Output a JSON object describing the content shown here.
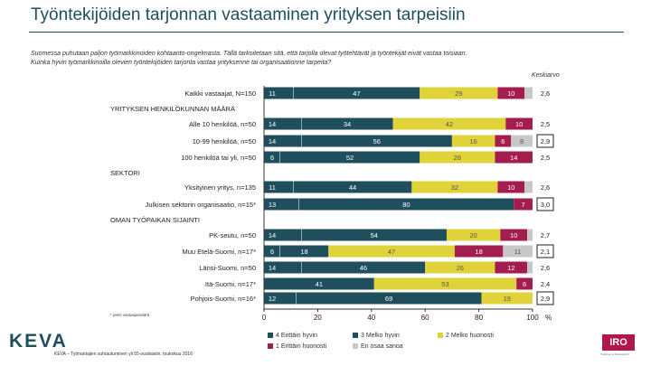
{
  "header": {
    "title": "Työntekijöiden tarjonnan vastaaminen yrityksen tarpeisiin",
    "question_line1": "Suomessa puhutaan paljon työmarkkinoiden kohtaanto-ongelmasta. Tällä tarkoitetaan sitä, että tarjolla olevat työtehtävät ja työntekijät eivät vastaa toisiaan.",
    "question_line2": "Kuinka hyvin työmarkkinoilla olevien työntekijöiden tarjonta vastaa yrityksenne tai organisaationne tarpeita?",
    "average_header": "Keskiarvo"
  },
  "footnote": "* pieni vastaajamäärä",
  "source": "KEVA – Työnantajien suhtautuminen yli 55-vuotiaisiin, toukokuu 2016",
  "logos": {
    "left": "KEVA",
    "right": "IRO",
    "right_sub": "Tutkimus & Konsultointi"
  },
  "colors": {
    "erittain_hyvin": "#1f4e5c",
    "melko_hyvin": "#1f4e5c",
    "melko_huonosti": "#e0d33a",
    "erittain_huonosti": "#a31d4e",
    "en_osaa_sanoa": "#c8c8c8"
  },
  "chart_data": {
    "type": "bar",
    "orientation": "horizontal-stacked-100",
    "title": "Työntekijöiden tarjonnan vastaaminen yrityksen tarpeisiin",
    "xlim": [
      0,
      100
    ],
    "x_ticks": [
      "0",
      "20",
      "40",
      "60",
      "80",
      "100"
    ],
    "x_unit": "%",
    "series": [
      {
        "name": "4 Erittäin hyvin",
        "color": "#1f4e5c"
      },
      {
        "name": "3 Melko hyvin",
        "color": "#1f4e5c"
      },
      {
        "name": "2 Melko huonosti",
        "color": "#e0d33a"
      },
      {
        "name": "1 Erittäin huonosti",
        "color": "#a31d4e"
      },
      {
        "name": "En osaa sanoa",
        "color": "#c8c8c8"
      }
    ],
    "rows": [
      {
        "label": "Kaikki vastaajat, N=150",
        "values": [
          11,
          47,
          29,
          10,
          3
        ],
        "labels": [
          "11",
          "47",
          "29",
          "10",
          ""
        ],
        "average": "2,6",
        "boxed": false
      },
      {
        "section": "YRITYKSEN HENKILÖKUNNAN MÄÄRÄ"
      },
      {
        "label": "Alle 10 henkilöä, n=50",
        "values": [
          14,
          34,
          42,
          10,
          0
        ],
        "labels": [
          "14",
          "34",
          "42",
          "10",
          ""
        ],
        "average": "2,5",
        "boxed": false
      },
      {
        "label": "10-99 henkilöä, n=50",
        "values": [
          14,
          56,
          16,
          6,
          8
        ],
        "labels": [
          "14",
          "56",
          "16",
          "6",
          "8"
        ],
        "average": "2,9",
        "boxed": true
      },
      {
        "label": "100 henkilöä tai yli, n=50",
        "values": [
          6,
          52,
          28,
          14,
          0
        ],
        "labels": [
          "6",
          "52",
          "28",
          "14",
          ""
        ],
        "average": "2,5",
        "boxed": false
      },
      {
        "section": "SEKTORI"
      },
      {
        "label": "Yksityinen yritys, n=135",
        "values": [
          11,
          44,
          32,
          10,
          3
        ],
        "labels": [
          "11",
          "44",
          "32",
          "10",
          ""
        ],
        "average": "2,6",
        "boxed": false
      },
      {
        "label": "Julkisen sektorin organisaatio, n=15*",
        "values": [
          13,
          80,
          0,
          7,
          0
        ],
        "labels": [
          "13",
          "80",
          "",
          "7",
          ""
        ],
        "average": "3,0",
        "boxed": true
      },
      {
        "section": "OMAN TYÖPAIKAN SIJAINTI"
      },
      {
        "label": "PK-seutu, n=50",
        "values": [
          14,
          54,
          20,
          10,
          2
        ],
        "labels": [
          "14",
          "54",
          "20",
          "10",
          ""
        ],
        "average": "2,7",
        "boxed": false
      },
      {
        "label": "Muu Etelä-Suomi, n=17*",
        "values": [
          6,
          18,
          47,
          18,
          11
        ],
        "labels": [
          "6",
          "18",
          "47",
          "18",
          "11"
        ],
        "average": "2,1",
        "boxed": true
      },
      {
        "label": "Länsi-Suomi, n=50",
        "values": [
          14,
          46,
          26,
          12,
          2
        ],
        "labels": [
          "14",
          "46",
          "26",
          "12",
          ""
        ],
        "average": "2,6",
        "boxed": false
      },
      {
        "label": "Itä-Suomi, n=17*",
        "values": [
          0,
          41,
          53,
          6,
          0
        ],
        "labels": [
          "",
          "41",
          "53",
          "6",
          ""
        ],
        "average": "2,4",
        "boxed": false
      },
      {
        "label": "Pohjois-Suomi, n=16*",
        "values": [
          12,
          69,
          19,
          0,
          0
        ],
        "labels": [
          "12",
          "69",
          "19",
          "",
          ""
        ],
        "average": "2,9",
        "boxed": true
      }
    ]
  }
}
